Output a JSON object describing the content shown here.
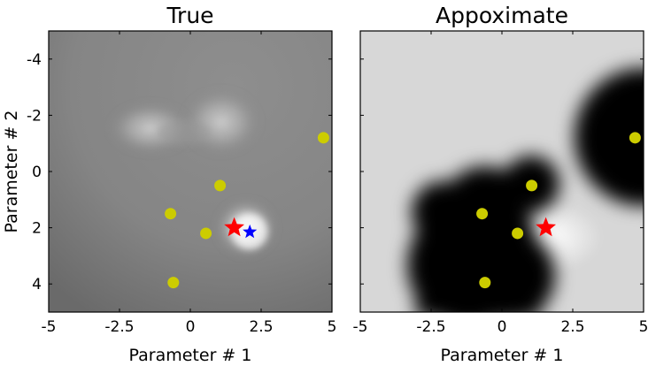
{
  "chart_data": [
    {
      "type": "heatmap",
      "title": "True",
      "xlabel": "Parameter # 1",
      "ylabel": "Parameter # 2",
      "xlim": [
        -5,
        5
      ],
      "ylim": [
        -5,
        5
      ],
      "y_inverted": true,
      "xticks": [
        -5,
        -2.5,
        0,
        2.5,
        5
      ],
      "xtick_labels": [
        "-5",
        "-2.5",
        "0",
        "2.5",
        "5"
      ],
      "yticks": [
        -4,
        -2,
        0,
        2,
        4
      ],
      "ytick_labels": [
        "-4",
        "-2",
        "0",
        "2",
        "4"
      ],
      "colormap": "gray",
      "samples": [
        {
          "x": 4.7,
          "y": -1.2
        },
        {
          "x": 1.05,
          "y": 0.5
        },
        {
          "x": -0.7,
          "y": 1.5
        },
        {
          "x": 0.55,
          "y": 2.2
        },
        {
          "x": -0.6,
          "y": 3.95
        }
      ],
      "red_star": {
        "x": 1.55,
        "y": 2.0
      },
      "blue_star": {
        "x": 2.1,
        "y": 2.15
      },
      "colors": {
        "sample": "#cccc00",
        "red_star": "#ff0000",
        "blue_star": "#0000ff"
      }
    },
    {
      "type": "heatmap",
      "title": "Appoximate",
      "xlabel": "Parameter # 1",
      "ylabel": "",
      "xlim": [
        -5,
        5
      ],
      "ylim": [
        -5,
        5
      ],
      "y_inverted": true,
      "xticks": [
        -5,
        -2.5,
        0,
        2.5,
        5
      ],
      "xtick_labels": [
        "-5",
        "-2.5",
        "0",
        "2.5",
        "5"
      ],
      "colormap": "gray",
      "samples": [
        {
          "x": 4.7,
          "y": -1.2
        },
        {
          "x": 1.05,
          "y": 0.5
        },
        {
          "x": -0.7,
          "y": 1.5
        },
        {
          "x": 0.55,
          "y": 2.2
        },
        {
          "x": -0.6,
          "y": 3.95
        }
      ],
      "red_star": {
        "x": 1.55,
        "y": 2.0
      },
      "colors": {
        "sample": "#cccc00",
        "red_star": "#ff0000"
      }
    }
  ]
}
